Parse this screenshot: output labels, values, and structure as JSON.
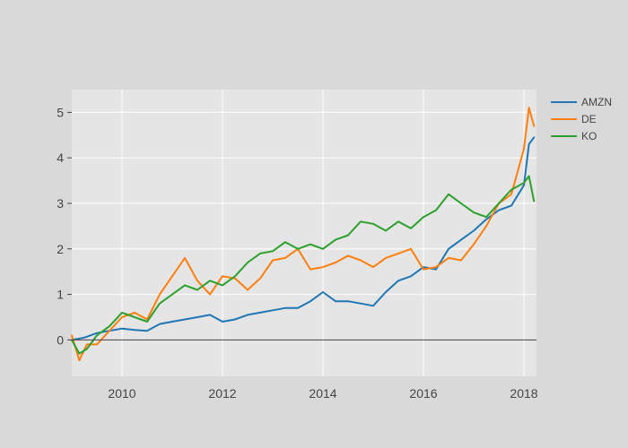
{
  "chart_data": {
    "type": "line",
    "title": "",
    "xlabel": "",
    "ylabel": "",
    "xlim": [
      2009.0,
      2018.25
    ],
    "ylim": [
      -0.8,
      5.5
    ],
    "x_ticks": [
      2010,
      2012,
      2014,
      2016,
      2018
    ],
    "x_tick_labels": [
      "2010",
      "2012",
      "2014",
      "2016",
      "2018"
    ],
    "y_ticks": [
      0,
      1,
      2,
      3,
      4,
      5
    ],
    "y_tick_labels": [
      "0",
      "1",
      "2",
      "3",
      "4",
      "5"
    ],
    "grid": true,
    "zero_line": true,
    "legend_position": "right",
    "colors": {
      "page_background": "#d9d9d9",
      "plot_background": "#e5e5e5",
      "grid": "#ffffff",
      "zero_line": "#444444"
    },
    "series": [
      {
        "name": "AMZN",
        "color": "#1f77b4",
        "x": [
          2009.0,
          2009.25,
          2009.5,
          2009.75,
          2010.0,
          2010.25,
          2010.5,
          2010.75,
          2011.0,
          2011.25,
          2011.5,
          2011.75,
          2012.0,
          2012.25,
          2012.5,
          2012.75,
          2013.0,
          2013.25,
          2013.5,
          2013.75,
          2014.0,
          2014.25,
          2014.5,
          2014.75,
          2015.0,
          2015.25,
          2015.5,
          2015.75,
          2016.0,
          2016.25,
          2016.5,
          2016.75,
          2017.0,
          2017.25,
          2017.5,
          2017.75,
          2018.0,
          2018.1,
          2018.2
        ],
        "values": [
          0.0,
          0.05,
          0.15,
          0.2,
          0.25,
          0.22,
          0.2,
          0.35,
          0.4,
          0.45,
          0.5,
          0.55,
          0.4,
          0.45,
          0.55,
          0.6,
          0.65,
          0.7,
          0.7,
          0.85,
          1.05,
          0.85,
          0.85,
          0.8,
          0.75,
          1.05,
          1.3,
          1.4,
          1.6,
          1.55,
          2.0,
          2.2,
          2.4,
          2.65,
          2.85,
          2.95,
          3.4,
          4.3,
          4.45
        ]
      },
      {
        "name": "DE",
        "color": "#ff7f0e",
        "x": [
          2009.0,
          2009.15,
          2009.3,
          2009.5,
          2009.75,
          2010.0,
          2010.25,
          2010.5,
          2010.75,
          2011.0,
          2011.25,
          2011.5,
          2011.75,
          2012.0,
          2012.25,
          2012.5,
          2012.75,
          2013.0,
          2013.25,
          2013.5,
          2013.75,
          2014.0,
          2014.25,
          2014.5,
          2014.75,
          2015.0,
          2015.25,
          2015.5,
          2015.75,
          2016.0,
          2016.25,
          2016.5,
          2016.75,
          2017.0,
          2017.25,
          2017.5,
          2017.75,
          2018.0,
          2018.1,
          2018.2
        ],
        "values": [
          0.1,
          -0.45,
          -0.1,
          -0.1,
          0.2,
          0.5,
          0.6,
          0.45,
          1.0,
          1.4,
          1.8,
          1.3,
          1.0,
          1.4,
          1.35,
          1.1,
          1.35,
          1.75,
          1.8,
          2.0,
          1.55,
          1.6,
          1.7,
          1.85,
          1.75,
          1.6,
          1.8,
          1.9,
          2.0,
          1.55,
          1.6,
          1.8,
          1.75,
          2.1,
          2.5,
          3.0,
          3.2,
          4.2,
          5.1,
          4.7
        ]
      },
      {
        "name": "KO",
        "color": "#2ca02c",
        "x": [
          2009.0,
          2009.15,
          2009.3,
          2009.5,
          2009.75,
          2010.0,
          2010.25,
          2010.5,
          2010.75,
          2011.0,
          2011.25,
          2011.5,
          2011.75,
          2012.0,
          2012.25,
          2012.5,
          2012.75,
          2013.0,
          2013.25,
          2013.5,
          2013.75,
          2014.0,
          2014.25,
          2014.5,
          2014.75,
          2015.0,
          2015.25,
          2015.5,
          2015.75,
          2016.0,
          2016.25,
          2016.5,
          2016.75,
          2017.0,
          2017.25,
          2017.5,
          2017.75,
          2018.0,
          2018.1,
          2018.2
        ],
        "values": [
          0.0,
          -0.3,
          -0.2,
          0.1,
          0.3,
          0.6,
          0.5,
          0.4,
          0.8,
          1.0,
          1.2,
          1.1,
          1.3,
          1.2,
          1.4,
          1.7,
          1.9,
          1.95,
          2.15,
          2.0,
          2.1,
          2.0,
          2.2,
          2.3,
          2.6,
          2.55,
          2.4,
          2.6,
          2.45,
          2.7,
          2.85,
          3.2,
          3.0,
          2.8,
          2.7,
          3.0,
          3.3,
          3.45,
          3.6,
          3.05
        ]
      }
    ]
  }
}
